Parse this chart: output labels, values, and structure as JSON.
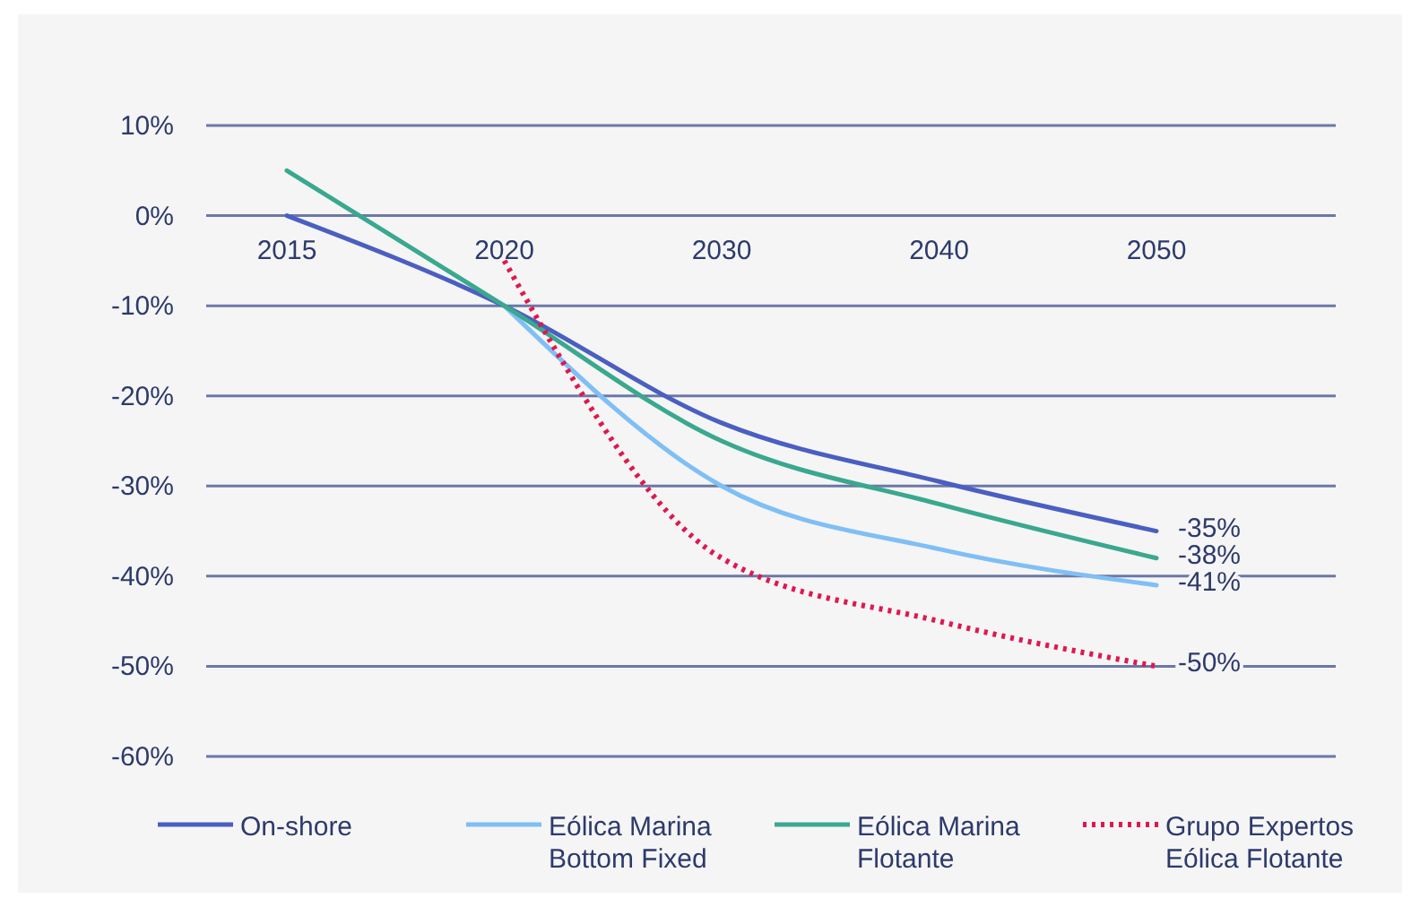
{
  "chart_data": {
    "type": "line",
    "categories": [
      "2015",
      "2020",
      "2030",
      "2040",
      "2050"
    ],
    "ylim": [
      -60,
      10
    ],
    "yticks": [
      {
        "value": 10,
        "label": "10%"
      },
      {
        "value": 0,
        "label": "0%"
      },
      {
        "value": -10,
        "label": "-10%"
      },
      {
        "value": -20,
        "label": "-20%"
      },
      {
        "value": -30,
        "label": "-30%"
      },
      {
        "value": -40,
        "label": "-40%"
      },
      {
        "value": -50,
        "label": "-50%"
      },
      {
        "value": -60,
        "label": "-60%"
      }
    ],
    "grid": "y",
    "legend": "bottom",
    "marker": "none",
    "series": [
      {
        "name": "On-shore",
        "color": "#4a5fc1",
        "values": [
          0,
          -10,
          -23,
          -29.5,
          -35
        ],
        "value_labels": [
          null,
          null,
          null,
          null,
          "-35%"
        ],
        "line_style": "solid"
      },
      {
        "name": "Eólica Marina Bottom Fixed",
        "color": "#7fbff5",
        "values": [
          null,
          -10,
          -30,
          -37,
          -41
        ],
        "value_labels": [
          null,
          null,
          null,
          null,
          "-41%"
        ],
        "line_style": "solid"
      },
      {
        "name": "Eólica Marina Flotante",
        "color": "#3aa88f",
        "values": [
          5,
          -10,
          -25,
          -32,
          -38
        ],
        "value_labels": [
          null,
          null,
          null,
          null,
          "-38%"
        ],
        "line_style": "solid"
      },
      {
        "name": "Grupo Expertos Eólica Flotante",
        "color": "#e0174f",
        "values": [
          null,
          -5,
          -38,
          -45,
          -50
        ],
        "value_labels": [
          null,
          null,
          null,
          null,
          "-50%"
        ],
        "line_style": "dotted"
      }
    ]
  }
}
